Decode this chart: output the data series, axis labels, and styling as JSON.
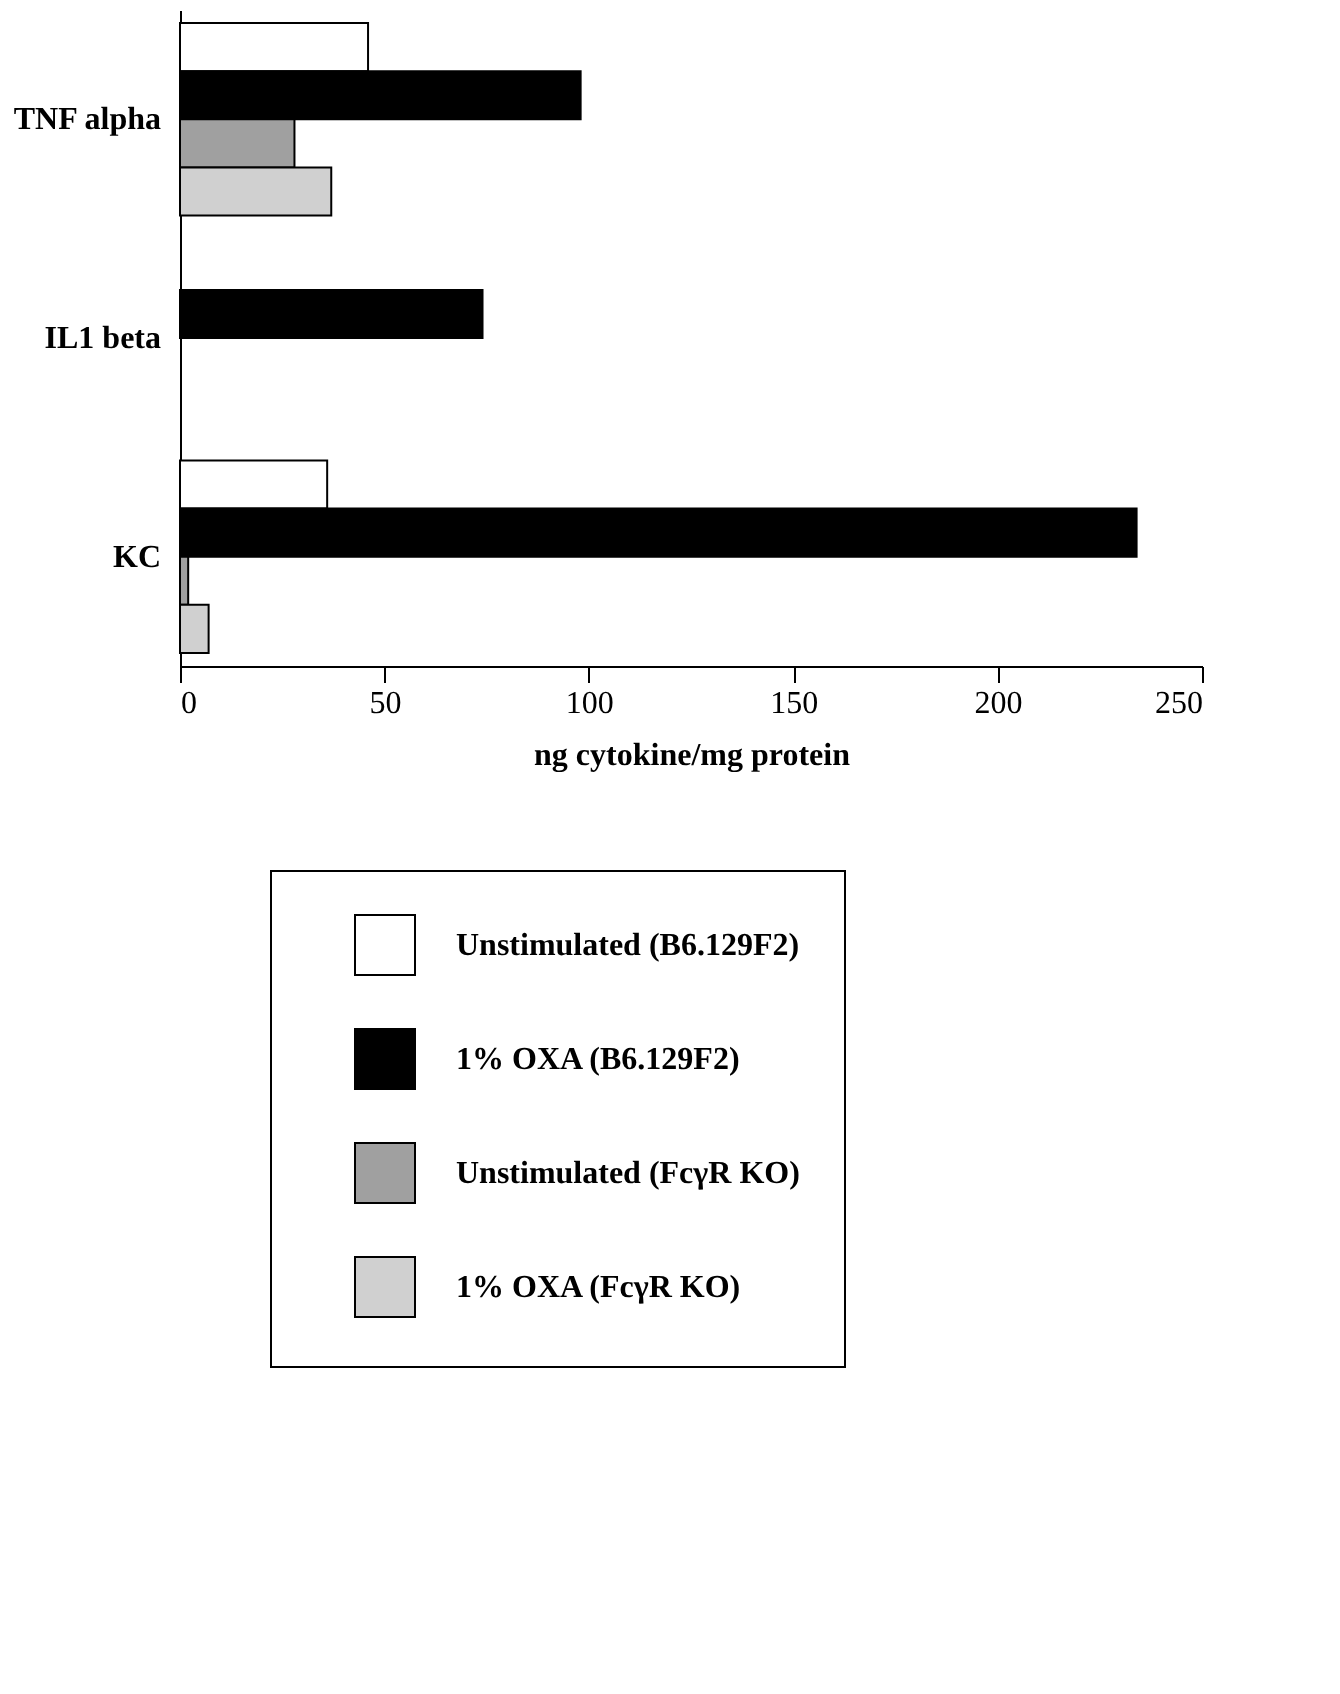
{
  "chart_data": {
    "type": "bar",
    "orientation": "horizontal",
    "xlabel": "ng cytokine/mg protein",
    "categories": [
      "TNF alpha",
      "IL1 beta",
      "KC"
    ],
    "series": [
      {
        "name": "Unstimulated (B6.129F2)",
        "color": "#ffffff",
        "values": [
          46,
          null,
          36
        ]
      },
      {
        "name": "1% OXA (B6.129F2)",
        "color": "#000000",
        "values": [
          98,
          74,
          234
        ]
      },
      {
        "name": "Unstimulated (FcγR KO)",
        "color": "#a0a0a0",
        "values": [
          28,
          null,
          2
        ]
      },
      {
        "name": "1% OXA (FcγR KO)",
        "color": "#d0d0d0",
        "values": [
          37,
          null,
          7
        ]
      }
    ],
    "xlim": [
      0,
      250
    ],
    "xticks": [
      0,
      50,
      100,
      150,
      200,
      250
    ],
    "grid": false,
    "legend": "bottom"
  }
}
